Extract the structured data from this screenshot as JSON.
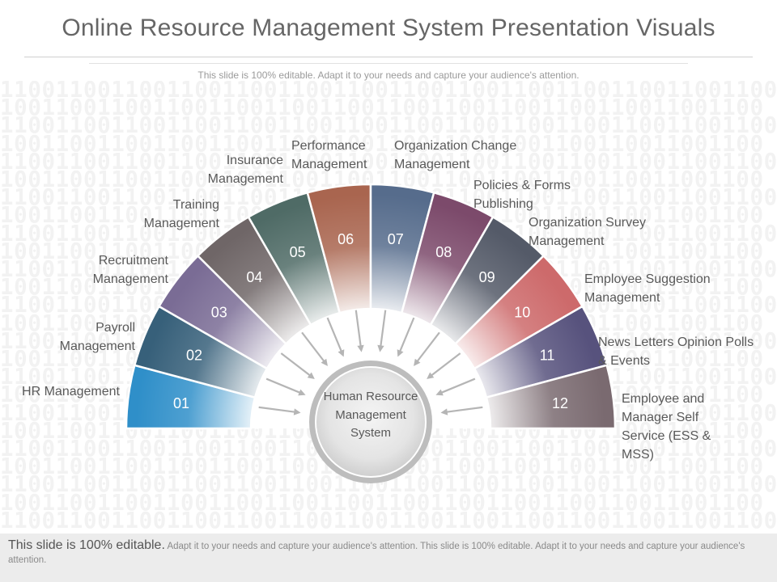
{
  "header": {
    "title": "Online Resource Management System Presentation Visuals",
    "subtitle": "This slide is 100% editable. Adapt it to your needs and capture your audience's attention."
  },
  "background": {
    "pattern_text": "11001100110011001100110011001100110011001100110011001100"
  },
  "center": {
    "label": "Human Resource Management System"
  },
  "segments": [
    {
      "num": "01",
      "label": "HR Management",
      "color": "#2f8fc9"
    },
    {
      "num": "02",
      "label": "Payroll Management",
      "color": "#37607a"
    },
    {
      "num": "03",
      "label": "Recruitment Management",
      "color": "#7a6c95"
    },
    {
      "num": "04",
      "label": "Training Management",
      "color": "#6f6667"
    },
    {
      "num": "05",
      "label": "Insurance Management",
      "color": "#4f6b66"
    },
    {
      "num": "06",
      "label": "Performance Management",
      "color": "#a9654f"
    },
    {
      "num": "07",
      "label": "Organization Change Management",
      "color": "#566c8c"
    },
    {
      "num": "08",
      "label": "Policies & Forms Publishing",
      "color": "#7c4a6b"
    },
    {
      "num": "09",
      "label": "Organization Survey Management",
      "color": "#545a68"
    },
    {
      "num": "10",
      "label": "Employee Suggestion Management",
      "color": "#cd6a6b"
    },
    {
      "num": "11",
      "label": "News Letters Opinion Polls & Events",
      "color": "#57527d"
    },
    {
      "num": "12",
      "label": "Employee and Manager Self Service (ESS & MSS)",
      "color": "#7a6a70"
    }
  ],
  "footer": {
    "lead": "This slide is 100% editable.",
    "text": "Adapt it to your needs and capture your audience's attention. This slide is 100% editable. Adapt it to your needs and capture your audience's attention."
  }
}
